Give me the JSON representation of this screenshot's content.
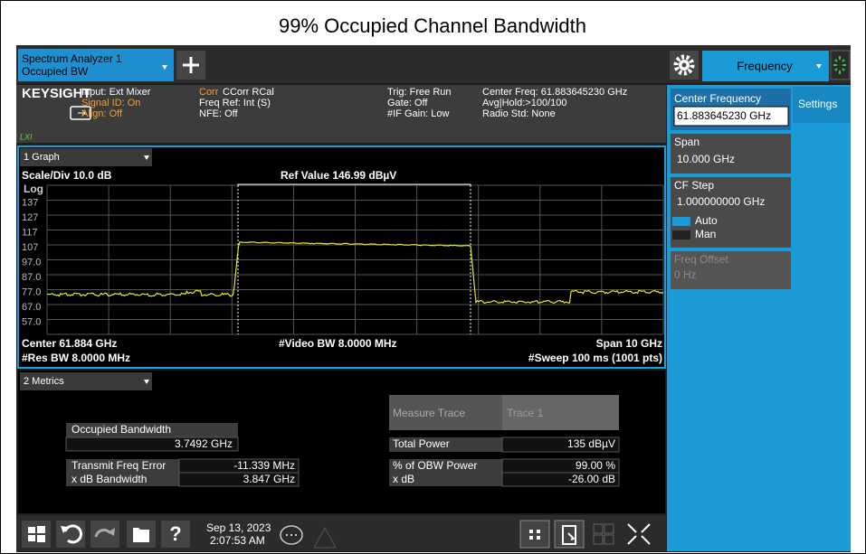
{
  "title": "99% Occupied Channel Bandwidth",
  "top_bar": {
    "tab_line1": "Spectrum Analyzer 1",
    "tab_line2": "Occupied BW",
    "menu": "Frequency"
  },
  "info_bar": {
    "logo": "KEYSIGHT",
    "lxi": "LXI",
    "input": "Input: Ext Mixer",
    "signal_id": "Signal ID: On",
    "align": "Align: Off",
    "corr": "Corr",
    "corr_rest": "CCorr RCal",
    "freq_ref": "Freq Ref: Int (S)",
    "nfe": "NFE: Off",
    "trig": "Trig: Free Run",
    "gate": "Gate: Off",
    "if_gain": "#IF Gain: Low",
    "center_freq": "Center Freq: 61.883645230 GHz",
    "avg_hold": "Avg|Hold:>100/100",
    "radio_std": "Radio Std: None"
  },
  "side_panel": {
    "settings_tab": "Settings",
    "center_frequency": {
      "label": "Center Frequency",
      "value": "61.883645230 GHz"
    },
    "span": {
      "label": "Span",
      "value": "10.000 GHz"
    },
    "cf_step": {
      "label": "CF Step",
      "value": "1.000000000 GHz",
      "auto": "Auto",
      "man": "Man"
    },
    "freq_offset": {
      "label": "Freq Offset",
      "value": "0 Hz"
    }
  },
  "graph": {
    "tab": "1 Graph",
    "scale": "Scale/Div 10.0 dB",
    "ref_value": "Ref Value 146.99 dBµV",
    "log": "Log",
    "y_labels": [
      "137",
      "127",
      "117",
      "107",
      "97.0",
      "87.0",
      "77.0",
      "67.0",
      "57.0"
    ],
    "center": "Center 61.884 GHz",
    "video_bw": "#Video BW 8.0000 MHz",
    "span": "Span 10 GHz",
    "res_bw": "#Res BW 8.0000 MHz",
    "sweep": "#Sweep 100 ms (1001 pts)"
  },
  "metrics": {
    "tab": "2 Metrics",
    "occupied_bandwidth": {
      "label": "Occupied Bandwidth",
      "value": "3.7492 GHz"
    },
    "transmit_freq_error": {
      "label": "Transmit Freq Error",
      "value": "-11.339 MHz"
    },
    "x_db_bandwidth": {
      "label": "x dB Bandwidth",
      "value": "3.847 GHz"
    },
    "measure_trace": {
      "label": "Measure Trace",
      "value": "Trace 1"
    },
    "total_power": {
      "label": "Total Power",
      "value": "135 dBµV"
    },
    "obw_power": {
      "label": "% of OBW Power",
      "value": "99.00 %"
    },
    "x_db": {
      "label": "x dB",
      "value": "-26.00 dB"
    }
  },
  "taskbar": {
    "date": "Sep 13, 2023",
    "time": "2:07:53 AM"
  }
}
